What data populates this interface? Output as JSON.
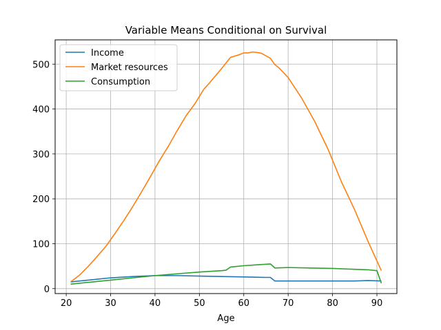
{
  "chart_data": {
    "type": "line",
    "title": "Variable Means Conditional on Survival",
    "xlabel": "Age",
    "ylabel": "",
    "xlim": [
      17.5,
      94.5
    ],
    "ylim": [
      -11,
      554
    ],
    "xticks": [
      20,
      30,
      40,
      50,
      60,
      70,
      80,
      90
    ],
    "yticks": [
      0,
      100,
      200,
      300,
      400,
      500
    ],
    "grid": true,
    "legend": "top-left",
    "series": [
      {
        "name": "Income",
        "color": "#1f77b4",
        "x": [
          21,
          25,
          30,
          35,
          40,
          45,
          50,
          55,
          60,
          65,
          66,
          67,
          70,
          75,
          80,
          85,
          88,
          91
        ],
        "y": [
          15,
          19,
          24,
          27,
          29,
          29,
          28,
          27,
          26,
          25,
          25,
          17,
          17,
          17,
          17,
          17,
          18,
          17
        ]
      },
      {
        "name": "Market resources",
        "color": "#ff7f0e",
        "x": [
          21,
          23,
          25,
          27,
          29,
          31,
          33,
          35,
          37,
          39,
          41,
          43,
          45,
          47,
          49,
          51,
          52,
          55,
          57,
          59,
          60,
          61,
          62,
          63,
          64,
          66,
          67,
          68,
          70,
          72,
          73,
          76,
          79,
          82,
          85,
          88,
          91
        ],
        "y": [
          15,
          30,
          50,
          72,
          95,
          123,
          152,
          183,
          216,
          250,
          285,
          317,
          352,
          385,
          412,
          444,
          455,
          490,
          515,
          521,
          525,
          525,
          527,
          526,
          524,
          513,
          499,
          491,
          470,
          440,
          425,
          372,
          310,
          238,
          175,
          105,
          40
        ]
      },
      {
        "name": "Consumption",
        "color": "#2ca02c",
        "x": [
          21,
          25,
          30,
          35,
          40,
          45,
          50,
          55,
          56,
          57,
          60,
          63,
          66,
          67,
          70,
          75,
          80,
          85,
          88,
          90,
          91
        ],
        "y": [
          10,
          14,
          19,
          24,
          29,
          33,
          37,
          40,
          41,
          48,
          51,
          53,
          55,
          46,
          47,
          46,
          45,
          43,
          42,
          40,
          12
        ]
      }
    ]
  }
}
